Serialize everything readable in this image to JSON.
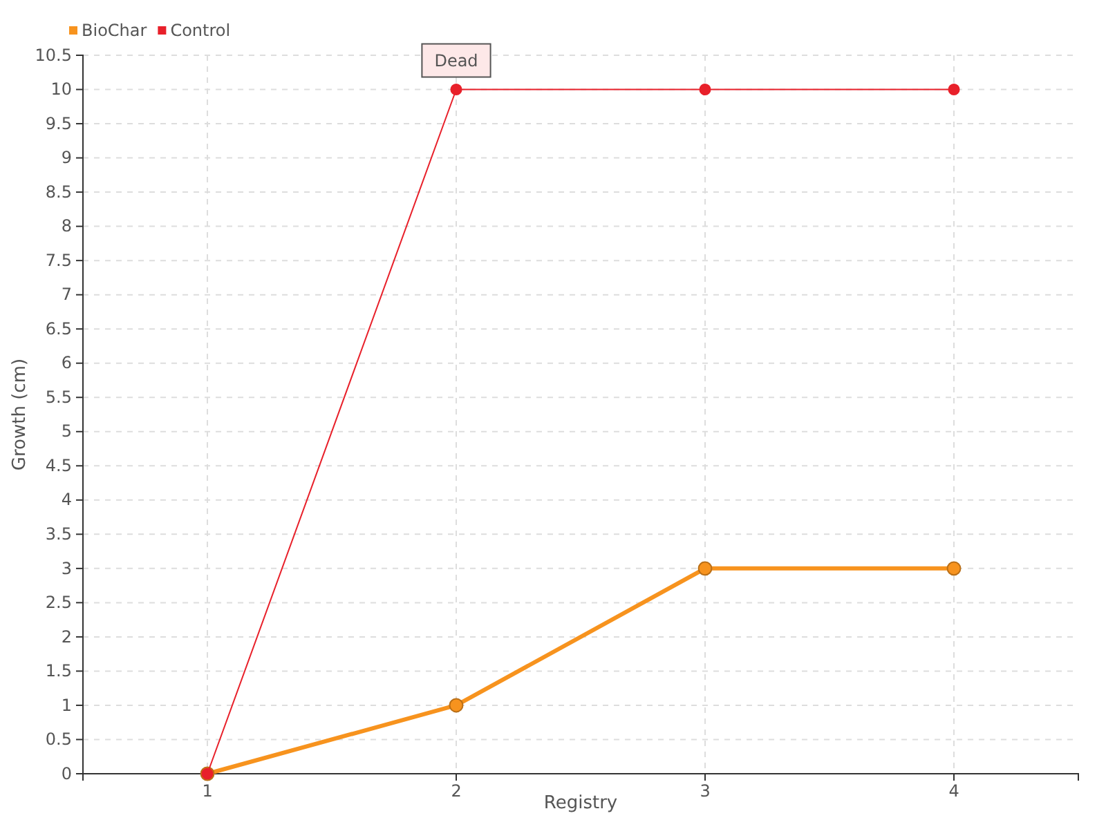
{
  "chart_data": {
    "type": "line",
    "xlabel": "Registry",
    "ylabel": "Growth (cm)",
    "categories": [
      "1",
      "2",
      "3",
      "4"
    ],
    "series": [
      {
        "name": "BioChar",
        "color": "#f7931e",
        "values": [
          0,
          1,
          3,
          3
        ]
      },
      {
        "name": "Control",
        "color": "#e8202a",
        "values": [
          0,
          10,
          10,
          10
        ]
      }
    ],
    "ylim": [
      0,
      10.5
    ],
    "yticks": [
      0,
      0.5,
      1,
      1.5,
      2,
      2.5,
      3,
      3.5,
      4,
      4.5,
      5,
      5.5,
      6,
      6.5,
      7,
      7.5,
      8,
      8.5,
      9,
      9.5,
      10,
      10.5
    ],
    "grid": true,
    "legend": "top left",
    "marker": "circle",
    "annotations": [
      {
        "text": "Dead",
        "x": "2",
        "y": 10
      }
    ]
  }
}
